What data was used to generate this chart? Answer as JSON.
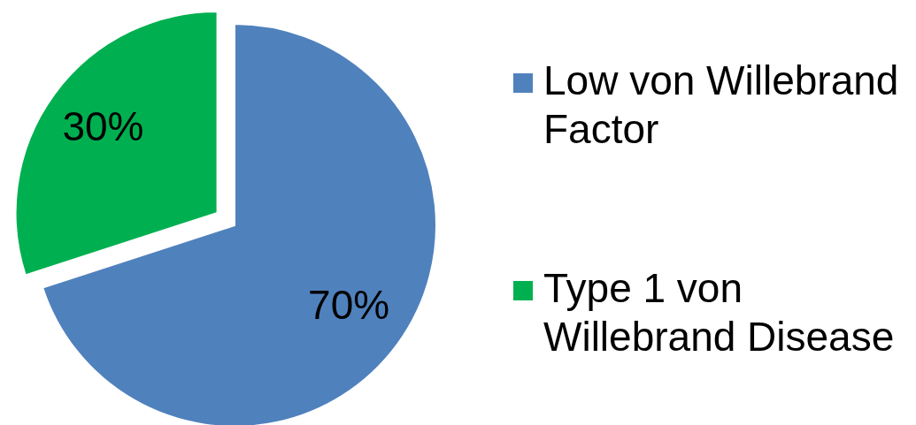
{
  "chart_data": {
    "type": "pie",
    "categories": [
      "Low von Willebrand Factor",
      "Type 1 von Willebrand Disease"
    ],
    "values": [
      70,
      30
    ],
    "colors": [
      "#4f81bd",
      "#00b050"
    ],
    "value_labels": [
      "70%",
      "30%"
    ],
    "legend": "right"
  }
}
